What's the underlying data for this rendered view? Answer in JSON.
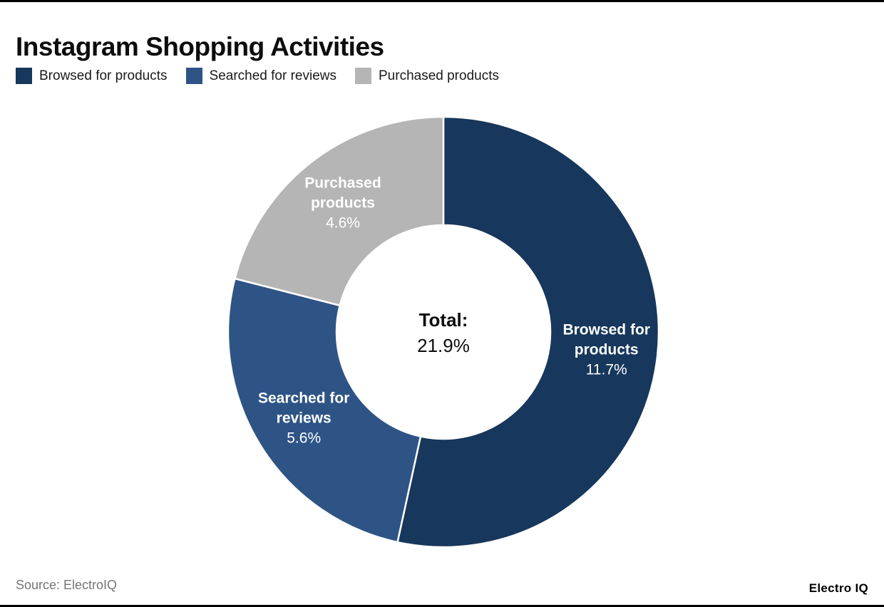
{
  "title": "Instagram Shopping Activities",
  "chart_data": {
    "type": "pie",
    "subtype": "donut",
    "title": "Instagram Shopping Activities",
    "total": 21.9,
    "center_label": "Total:",
    "center_value": "21.9%",
    "start_angle_deg": 0,
    "legend_position": "top",
    "slices": [
      {
        "label": "Browsed for products",
        "label_lines": [
          "Browsed for",
          "products"
        ],
        "value": 11.7,
        "display": "11.7%",
        "color": "#17375c"
      },
      {
        "label": "Searched for reviews",
        "label_lines": [
          "Searched for",
          "reviews"
        ],
        "value": 5.6,
        "display": "5.6%",
        "color": "#2e5486"
      },
      {
        "label": "Purchased products",
        "label_lines": [
          "Purchased",
          "products"
        ],
        "value": 4.6,
        "display": "4.6%",
        "color": "#b5b5b6"
      }
    ]
  },
  "footer": {
    "source": "Source: ElectroIQ",
    "brand": "Electro IQ"
  }
}
